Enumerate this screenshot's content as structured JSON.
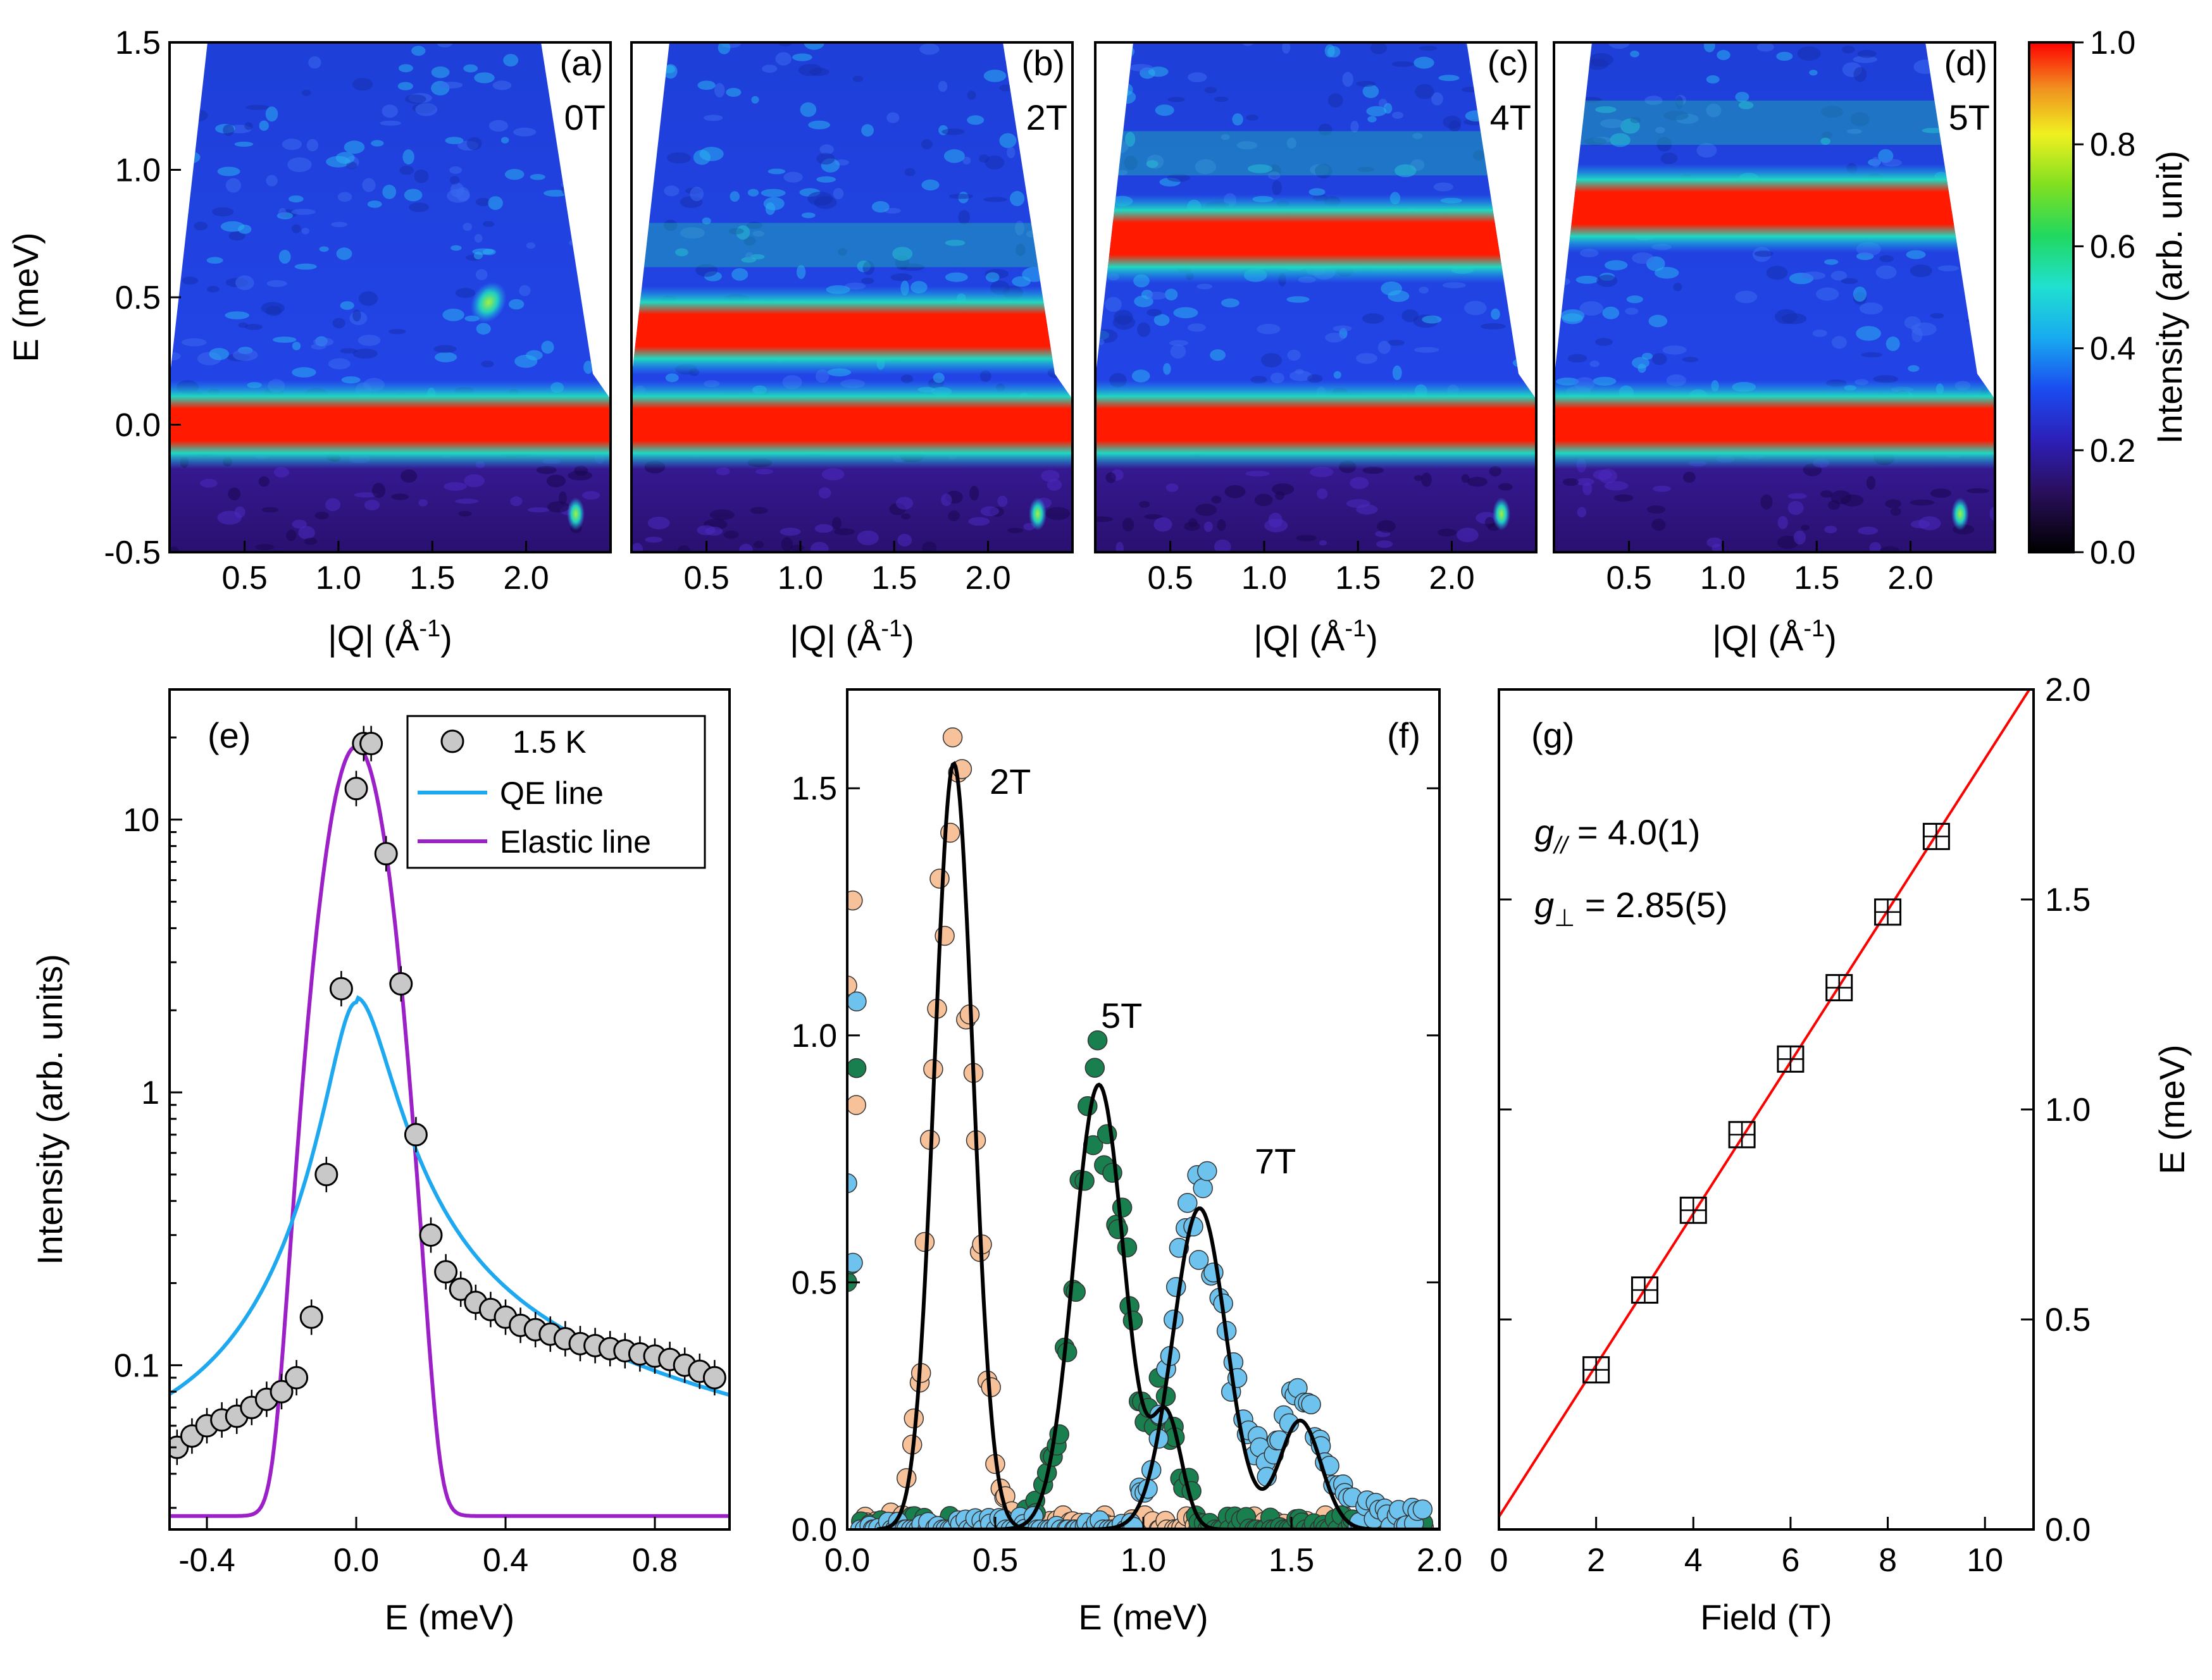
{
  "colors": {
    "qe_line": "#1EA8F0",
    "elastic_line": "#9B20C8",
    "fit_line": "#000000",
    "linear_fit": "#FF0000",
    "points_2T": "#F7C29A",
    "points_5T": "#1A7F4E",
    "points_7T": "#6EC3EE",
    "points_1p5K": "#C8C8C8"
  },
  "chart_data": [
    {
      "type": "heatmap",
      "panel": "(a)",
      "field_label": "0T",
      "xlabel": "|Q| (Å",
      "xlabel_sup": "-1",
      "xlabel_close": ")",
      "ylabel": "E (meV)",
      "xlim": [
        0.1,
        2.45
      ],
      "ylim": [
        -0.5,
        1.5
      ],
      "xticks": [
        "0.5",
        "1.0",
        "1.5",
        "2.0"
      ],
      "yticks": [
        "-0.5",
        "0.0",
        "0.5",
        "1.0",
        "1.5"
      ],
      "bands": [
        {
          "energy": 0.0,
          "intensity": 1.0
        },
        {
          "energy": 0.48,
          "q": 1.8,
          "intensity": 0.6,
          "note": "spurious spot"
        }
      ]
    },
    {
      "type": "heatmap",
      "panel": "(b)",
      "field_label": "2T",
      "xlabel": "|Q| (Å",
      "xlabel_sup": "-1",
      "xlabel_close": ")",
      "xlim": [
        0.1,
        2.45
      ],
      "ylim": [
        -0.5,
        1.5
      ],
      "xticks": [
        "0.5",
        "1.0",
        "1.5",
        "2.0"
      ],
      "bands": [
        {
          "energy": 0.0,
          "intensity": 1.0
        },
        {
          "energy": 0.37,
          "intensity": 1.0
        }
      ]
    },
    {
      "type": "heatmap",
      "panel": "(c)",
      "field_label": "4T",
      "xlabel": "|Q| (Å",
      "xlabel_sup": "-1",
      "xlabel_close": ")",
      "xlim": [
        0.1,
        2.45
      ],
      "ylim": [
        -0.5,
        1.5
      ],
      "xticks": [
        "0.5",
        "1.0",
        "1.5",
        "2.0"
      ],
      "bands": [
        {
          "energy": 0.0,
          "intensity": 1.0
        },
        {
          "energy": 0.73,
          "intensity": 1.0
        }
      ]
    },
    {
      "type": "heatmap",
      "panel": "(d)",
      "field_label": "5T",
      "xlabel": "|Q| (Å",
      "xlabel_sup": "-1",
      "xlabel_close": ")",
      "xlim": [
        0.1,
        2.45
      ],
      "ylim": [
        -0.5,
        1.5
      ],
      "xticks": [
        "0.5",
        "1.0",
        "1.5",
        "2.0"
      ],
      "bands": [
        {
          "energy": 0.0,
          "intensity": 1.0
        },
        {
          "energy": 0.85,
          "intensity": 1.0
        }
      ]
    },
    {
      "type": "colorbar",
      "label": "Intensity (arb. unit)",
      "range": [
        0.0,
        1.0
      ],
      "ticks": [
        "0.0",
        "0.2",
        "0.4",
        "0.6",
        "0.8",
        "1.0"
      ]
    },
    {
      "type": "scatter+line",
      "panel": "(e)",
      "xlabel": "E (meV)",
      "ylabel": "Intensity (arb. units)",
      "yscale": "log",
      "xlim": [
        -0.5,
        1.0
      ],
      "ylim": [
        0.025,
        30
      ],
      "xticks": [
        {
          "value": -0.4,
          "label": "-0.4"
        },
        {
          "value": 0.0,
          "label": "0.0"
        },
        {
          "value": 0.4,
          "label": "0.4"
        },
        {
          "value": 0.8,
          "label": "0.8"
        }
      ],
      "yticks": [
        {
          "value": 0.1,
          "label": "0.1"
        },
        {
          "value": 1,
          "label": "1"
        },
        {
          "value": 10,
          "label": "10"
        }
      ],
      "legend": [
        "1.5 K",
        "QE line",
        "Elastic line"
      ],
      "points": {
        "name": "1.5 K",
        "x": [
          -0.48,
          -0.44,
          -0.4,
          -0.36,
          -0.32,
          -0.28,
          -0.24,
          -0.2,
          -0.16,
          -0.12,
          -0.08,
          -0.04,
          0.0,
          0.02,
          0.04,
          0.08,
          0.12,
          0.16,
          0.2,
          0.24,
          0.28,
          0.32,
          0.36,
          0.4,
          0.44,
          0.48,
          0.52,
          0.56,
          0.6,
          0.64,
          0.68,
          0.72,
          0.76,
          0.8,
          0.84,
          0.88,
          0.92,
          0.96
        ],
        "y": [
          0.05,
          0.055,
          0.06,
          0.063,
          0.065,
          0.07,
          0.075,
          0.08,
          0.09,
          0.15,
          0.5,
          2.4,
          13,
          19,
          19,
          7.5,
          2.5,
          0.7,
          0.3,
          0.22,
          0.19,
          0.17,
          0.16,
          0.15,
          0.14,
          0.135,
          0.13,
          0.125,
          0.12,
          0.118,
          0.115,
          0.113,
          0.11,
          0.108,
          0.105,
          0.1,
          0.095,
          0.09
        ]
      },
      "qe_line": {
        "amplitude": 2.1,
        "center": 0.0,
        "baseline": 0.028
      },
      "elastic_line": {
        "amplitude": 18.5,
        "center": 0.0,
        "sigma": 0.06,
        "baseline": 0.028
      }
    },
    {
      "type": "scatter+line",
      "panel": "(f)",
      "xlabel": "E (meV)",
      "xlim": [
        0.0,
        2.0
      ],
      "ylim": [
        0.0,
        1.7
      ],
      "xticks": [
        {
          "value": 0.0,
          "label": "0.0"
        },
        {
          "value": 0.5,
          "label": "0.5"
        },
        {
          "value": 1.0,
          "label": "1.0"
        },
        {
          "value": 1.5,
          "label": "1.5"
        },
        {
          "value": 2.0,
          "label": "2.0"
        }
      ],
      "yticks": [
        {
          "value": 0.0,
          "label": "0.0"
        },
        {
          "value": 0.5,
          "label": "0.5"
        },
        {
          "value": 1.0,
          "label": "1.0"
        },
        {
          "value": 1.5,
          "label": "1.5"
        }
      ],
      "annotations": [
        "2T",
        "5T",
        "7T"
      ],
      "series": [
        {
          "name": "2T",
          "peaks": [
            {
              "center": 0.36,
              "amplitude": 1.55,
              "sigma": 0.065
            }
          ]
        },
        {
          "name": "5T",
          "peaks": [
            {
              "center": 0.85,
              "amplitude": 0.9,
              "sigma": 0.085
            },
            {
              "center": 1.08,
              "amplitude": 0.22,
              "sigma": 0.05
            }
          ]
        },
        {
          "name": "7T",
          "peaks": [
            {
              "center": 1.19,
              "amplitude": 0.65,
              "sigma": 0.09
            },
            {
              "center": 1.53,
              "amplitude": 0.22,
              "sigma": 0.07
            }
          ]
        }
      ]
    },
    {
      "type": "scatter+line",
      "panel": "(g)",
      "xlabel": "Field (T)",
      "ylabel": "E (meV)",
      "xlim": [
        0,
        11
      ],
      "ylim": [
        0.0,
        2.0
      ],
      "xticks": [
        {
          "value": 0,
          "label": "0"
        },
        {
          "value": 2,
          "label": "2"
        },
        {
          "value": 4,
          "label": "4"
        },
        {
          "value": 6,
          "label": "6"
        },
        {
          "value": 8,
          "label": "8"
        },
        {
          "value": 10,
          "label": "10"
        }
      ],
      "yticks": [
        {
          "value": 0.0,
          "label": "0.0"
        },
        {
          "value": 0.5,
          "label": "0.5"
        },
        {
          "value": 1.0,
          "label": "1.0"
        },
        {
          "value": 1.5,
          "label": "1.5"
        },
        {
          "value": 2.0,
          "label": "2.0"
        }
      ],
      "x": [
        2,
        3,
        4,
        5,
        6,
        7,
        8,
        9
      ],
      "y": [
        0.38,
        0.57,
        0.76,
        0.94,
        1.12,
        1.29,
        1.47,
        1.65
      ],
      "fit": {
        "slope": 0.1805,
        "intercept": 0.03
      },
      "annotations": {
        "g_par_symbol": "g",
        "g_par_sub": "//",
        "g_par_value": " = 4.0(1)",
        "g_perp_symbol": "g",
        "g_perp_sub": "⊥",
        "g_perp_value": " = 2.85(5)"
      }
    }
  ]
}
